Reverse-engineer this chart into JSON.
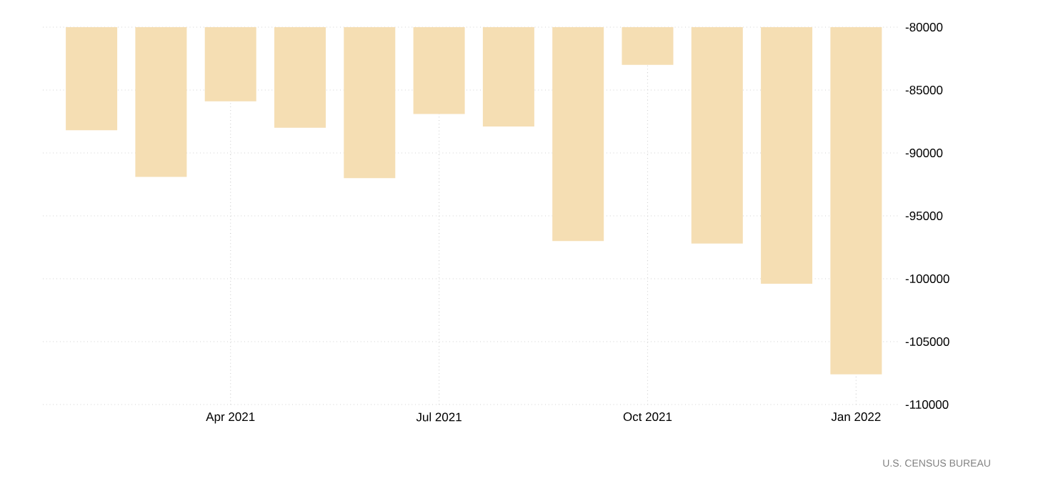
{
  "chart_data": {
    "type": "bar",
    "x": [
      "2021-02",
      "2021-03",
      "2021-04",
      "2021-05",
      "2021-06",
      "2021-07",
      "2021-08",
      "2021-09",
      "2021-10",
      "2021-11",
      "2021-12",
      "2022-01"
    ],
    "values": [
      -88200,
      -91900,
      -85900,
      -88000,
      -92000,
      -86900,
      -87900,
      -97000,
      -83000,
      -97200,
      -100400,
      -107600
    ],
    "color": "#f5deb3",
    "xlim": [
      "2021-01-10",
      "2022-01-20"
    ],
    "xticks": [
      {
        "value": "2021-04",
        "label": "Apr 2021"
      },
      {
        "value": "2021-07",
        "label": "Jul 2021"
      },
      {
        "value": "2021-10",
        "label": "Oct 2021"
      },
      {
        "value": "2022-01",
        "label": "Jan 2022"
      }
    ],
    "ylim": [
      -110000,
      -80000
    ],
    "yticks": [
      -110000,
      -105000,
      -100000,
      -95000,
      -90000,
      -85000,
      -80000
    ],
    "grid": true,
    "annotations": [
      "U.S. CENSUS BUREAU"
    ]
  }
}
